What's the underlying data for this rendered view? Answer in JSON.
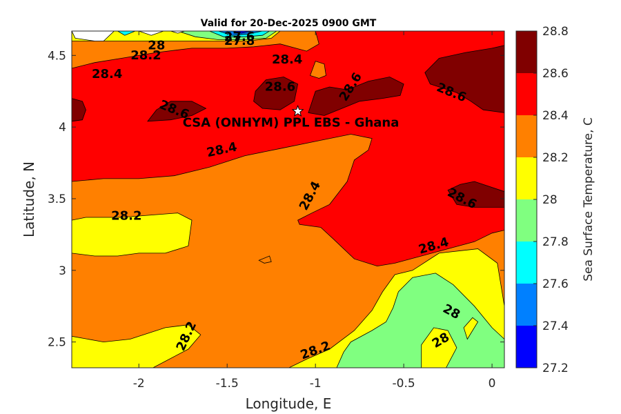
{
  "chart_data": {
    "type": "heatmap",
    "subtype": "filled-contour map",
    "title": "Valid for 20-Dec-2025 0900 GMT",
    "xlabel": "Longitude, E",
    "ylabel": "Latitude, N",
    "xlim": [
      -2.38,
      0.07
    ],
    "ylim": [
      2.32,
      4.67
    ],
    "x_ticks": [
      -2,
      -1.5,
      -1,
      -0.5,
      0
    ],
    "x_tick_labels": [
      "-2",
      "-1.5",
      "-1",
      "-0.5",
      "0"
    ],
    "y_ticks": [
      2.5,
      3,
      3.5,
      4,
      4.5
    ],
    "y_tick_labels": [
      "2.5",
      "3",
      "3.5",
      "4",
      "4.5"
    ],
    "colorbar": {
      "label": "Sea Surface Temperature, C",
      "ticks": [
        27.2,
        27.4,
        27.6,
        27.8,
        28,
        28.2,
        28.4,
        28.6,
        28.8
      ],
      "tick_labels": [
        "27.2",
        "27.4",
        "27.6",
        "27.8",
        "28",
        "28.2",
        "28.4",
        "28.6",
        "28.8"
      ],
      "levels": [
        {
          "min": 27.2,
          "max": 27.4,
          "color": "#0000ff"
        },
        {
          "min": 27.4,
          "max": 27.6,
          "color": "#0080ff"
        },
        {
          "min": 27.6,
          "max": 27.8,
          "color": "#00ffff"
        },
        {
          "min": 27.8,
          "max": 28.0,
          "color": "#80ff80"
        },
        {
          "min": 28.0,
          "max": 28.2,
          "color": "#ffff00"
        },
        {
          "min": 28.2,
          "max": 28.4,
          "color": "#ff8000"
        },
        {
          "min": 28.4,
          "max": 28.6,
          "color": "#ff0000"
        },
        {
          "min": 28.6,
          "max": 28.8,
          "color": "#800000"
        }
      ]
    },
    "site": {
      "label": "CSA (ONHYM) PPL EBS  - Ghana",
      "lon": -1.1,
      "lat": 4.11,
      "marker": "white star"
    },
    "regions": [
      {
        "level": 28.2,
        "color": "#ff8000",
        "polygon": [
          [
            -2.38,
            2.32
          ],
          [
            0.07,
            2.32
          ],
          [
            0.07,
            4.67
          ],
          [
            -2.38,
            4.67
          ]
        ]
      },
      {
        "level": 28.0,
        "color": "#ffff00",
        "polygon": [
          [
            -2.38,
            3.35
          ],
          [
            -2.3,
            3.37
          ],
          [
            -2.1,
            3.37
          ],
          [
            -1.78,
            3.4
          ],
          [
            -1.7,
            3.35
          ],
          [
            -1.72,
            3.17
          ],
          [
            -1.85,
            3.12
          ],
          [
            -2.0,
            3.12
          ],
          [
            -2.12,
            3.1
          ],
          [
            -2.25,
            3.1
          ],
          [
            -2.38,
            3.12
          ]
        ]
      },
      {
        "level": 28.0,
        "color": "#ffff00",
        "polygon": [
          [
            -2.38,
            2.32
          ],
          [
            -1.92,
            2.32
          ],
          [
            -1.72,
            2.45
          ],
          [
            -1.65,
            2.55
          ],
          [
            -1.72,
            2.62
          ],
          [
            -1.85,
            2.6
          ],
          [
            -2.05,
            2.52
          ],
          [
            -2.2,
            2.5
          ],
          [
            -2.38,
            2.54
          ]
        ]
      },
      {
        "level": 28.0,
        "color": "#ffff00",
        "polygon": [
          [
            -1.15,
            2.32
          ],
          [
            0.07,
            2.32
          ],
          [
            0.07,
            2.75
          ],
          [
            0.03,
            3.05
          ],
          [
            -0.08,
            3.15
          ],
          [
            -0.3,
            3.12
          ],
          [
            -0.45,
            3.0
          ],
          [
            -0.55,
            2.97
          ],
          [
            -0.62,
            2.85
          ],
          [
            -0.68,
            2.72
          ],
          [
            -0.78,
            2.58
          ],
          [
            -0.92,
            2.45
          ],
          [
            -1.05,
            2.38
          ]
        ]
      },
      {
        "level": 27.8,
        "color": "#80ff80",
        "polygon": [
          [
            -0.88,
            2.32
          ],
          [
            0.07,
            2.32
          ],
          [
            0.07,
            2.52
          ],
          [
            0.0,
            2.6
          ],
          [
            -0.1,
            2.75
          ],
          [
            -0.22,
            2.9
          ],
          [
            -0.32,
            2.98
          ],
          [
            -0.45,
            2.95
          ],
          [
            -0.53,
            2.85
          ],
          [
            -0.56,
            2.74
          ],
          [
            -0.6,
            2.64
          ],
          [
            -0.68,
            2.58
          ],
          [
            -0.8,
            2.5
          ],
          [
            -0.84,
            2.43
          ]
        ]
      },
      {
        "level": 28.0,
        "color": "#ffff00",
        "polygon": [
          [
            -0.4,
            2.32
          ],
          [
            -0.26,
            2.32
          ],
          [
            -0.2,
            2.46
          ],
          [
            -0.25,
            2.58
          ],
          [
            -0.33,
            2.6
          ],
          [
            -0.4,
            2.48
          ]
        ]
      },
      {
        "level": 28.0,
        "color": "#ffff00",
        "polygon": [
          [
            -0.14,
            2.52
          ],
          [
            -0.08,
            2.64
          ],
          [
            -0.11,
            2.67
          ],
          [
            -0.16,
            2.6
          ]
        ]
      },
      {
        "level": 28.4,
        "color": "#ff0000",
        "polygon": [
          [
            -2.38,
            3.62
          ],
          [
            -2.2,
            3.64
          ],
          [
            -2.0,
            3.64
          ],
          [
            -1.8,
            3.66
          ],
          [
            -1.6,
            3.72
          ],
          [
            -1.4,
            3.8
          ],
          [
            -1.2,
            3.85
          ],
          [
            -1.0,
            3.9
          ],
          [
            -0.8,
            3.95
          ],
          [
            -0.68,
            3.92
          ],
          [
            -0.7,
            3.84
          ],
          [
            -0.78,
            3.77
          ],
          [
            -0.82,
            3.62
          ],
          [
            -0.92,
            3.46
          ],
          [
            -1.02,
            3.4
          ],
          [
            -1.1,
            3.35
          ],
          [
            -1.09,
            3.32
          ],
          [
            -0.97,
            3.3
          ],
          [
            -0.9,
            3.22
          ],
          [
            -0.78,
            3.08
          ],
          [
            -0.65,
            3.03
          ],
          [
            -0.55,
            3.05
          ],
          [
            -0.4,
            3.1
          ],
          [
            -0.25,
            3.15
          ],
          [
            -0.1,
            3.2
          ],
          [
            0.0,
            3.26
          ],
          [
            0.07,
            3.28
          ],
          [
            0.07,
            4.67
          ],
          [
            -2.38,
            4.67
          ]
        ]
      },
      {
        "level": 28.2,
        "color": "#ff8000",
        "polygon": [
          [
            -2.38,
            4.41
          ],
          [
            -2.25,
            4.45
          ],
          [
            -2.1,
            4.48
          ],
          [
            -1.9,
            4.52
          ],
          [
            -1.7,
            4.55
          ],
          [
            -1.5,
            4.55
          ],
          [
            -1.35,
            4.56
          ],
          [
            -1.2,
            4.58
          ],
          [
            -1.05,
            4.53
          ],
          [
            -0.98,
            4.58
          ],
          [
            -1.0,
            4.67
          ],
          [
            -2.38,
            4.67
          ]
        ]
      },
      {
        "level": 28.0,
        "color": "#ffff00",
        "polygon": [
          [
            -2.38,
            4.67
          ],
          [
            -2.38,
            4.6
          ],
          [
            -2.2,
            4.6
          ],
          [
            -2.0,
            4.6
          ],
          [
            -1.8,
            4.6
          ],
          [
            -1.55,
            4.6
          ],
          [
            -1.38,
            4.6
          ],
          [
            -1.25,
            4.62
          ],
          [
            -1.2,
            4.67
          ]
        ]
      },
      {
        "level": 27.8,
        "color": "#80ff80",
        "polygon": [
          [
            -1.78,
            4.67
          ],
          [
            -1.68,
            4.63
          ],
          [
            -1.55,
            4.61
          ],
          [
            -1.4,
            4.61
          ],
          [
            -1.28,
            4.62
          ],
          [
            -1.22,
            4.67
          ]
        ]
      },
      {
        "level": 27.6,
        "color": "#00ffff",
        "polygon": [
          [
            -1.6,
            4.67
          ],
          [
            -1.52,
            4.63
          ],
          [
            -1.4,
            4.63
          ],
          [
            -1.3,
            4.64
          ],
          [
            -1.26,
            4.67
          ]
        ]
      },
      {
        "level": 27.4,
        "color": "#0080ff",
        "polygon": [
          [
            -1.55,
            4.67
          ],
          [
            -1.47,
            4.64
          ],
          [
            -1.38,
            4.65
          ],
          [
            -1.3,
            4.67
          ]
        ]
      },
      {
        "level": 27.2,
        "color": "#0000ff",
        "polygon": [
          [
            -1.47,
            4.67
          ],
          [
            -1.42,
            4.655
          ],
          [
            -1.36,
            4.67
          ]
        ]
      },
      {
        "level": 27.6,
        "color": "#00ffff",
        "polygon": [
          [
            -2.12,
            4.67
          ],
          [
            -2.08,
            4.64
          ],
          [
            -2.02,
            4.67
          ]
        ]
      },
      {
        "level": null,
        "color": "#ffffff",
        "polygon": [
          [
            -2.38,
            4.67
          ],
          [
            -2.36,
            4.62
          ],
          [
            -2.25,
            4.6
          ],
          [
            -2.2,
            4.6
          ],
          [
            -2.14,
            4.67
          ]
        ]
      },
      {
        "level": null,
        "color": "#ffffff",
        "polygon": [
          [
            -2.0,
            4.67
          ],
          [
            -1.93,
            4.64
          ],
          [
            -1.86,
            4.67
          ]
        ]
      },
      {
        "level": null,
        "color": "#ffffff",
        "polygon": [
          [
            -1.82,
            4.67
          ],
          [
            -1.78,
            4.655
          ],
          [
            -1.74,
            4.67
          ]
        ]
      },
      {
        "level": 28.2,
        "color": "#ff8000",
        "polygon": [
          [
            -1.03,
            4.36
          ],
          [
            -1.0,
            4.46
          ],
          [
            -0.95,
            4.44
          ],
          [
            -0.94,
            4.36
          ],
          [
            -0.98,
            4.34
          ]
        ]
      },
      {
        "level": 28.2,
        "color": "#ff8000",
        "polygon": [
          [
            -1.32,
            3.07
          ],
          [
            -1.26,
            3.1
          ],
          [
            -1.25,
            3.06
          ],
          [
            -1.29,
            3.05
          ]
        ]
      },
      {
        "level": 28.6,
        "color": "#800000",
        "polygon": [
          [
            -2.38,
            4.2
          ],
          [
            -2.32,
            4.18
          ],
          [
            -2.3,
            4.12
          ],
          [
            -2.32,
            4.05
          ],
          [
            -2.38,
            4.04
          ]
        ]
      },
      {
        "level": 28.6,
        "color": "#800000",
        "polygon": [
          [
            -1.95,
            4.04
          ],
          [
            -1.9,
            4.12
          ],
          [
            -1.82,
            4.18
          ],
          [
            -1.7,
            4.18
          ],
          [
            -1.62,
            4.13
          ],
          [
            -1.7,
            4.08
          ],
          [
            -1.82,
            4.05
          ]
        ]
      },
      {
        "level": 28.6,
        "color": "#800000",
        "polygon": [
          [
            -1.34,
            4.25
          ],
          [
            -1.28,
            4.33
          ],
          [
            -1.18,
            4.35
          ],
          [
            -1.1,
            4.3
          ],
          [
            -1.12,
            4.18
          ],
          [
            -1.2,
            4.12
          ],
          [
            -1.3,
            4.13
          ],
          [
            -1.35,
            4.18
          ]
        ]
      },
      {
        "level": 28.6,
        "color": "#800000",
        "polygon": [
          [
            -1.04,
            4.1
          ],
          [
            -1.0,
            4.25
          ],
          [
            -0.92,
            4.28
          ],
          [
            -0.82,
            4.26
          ],
          [
            -0.7,
            4.32
          ],
          [
            -0.58,
            4.35
          ],
          [
            -0.5,
            4.3
          ],
          [
            -0.52,
            4.22
          ],
          [
            -0.62,
            4.2
          ],
          [
            -0.75,
            4.18
          ],
          [
            -0.85,
            4.13
          ],
          [
            -0.95,
            4.08
          ]
        ]
      },
      {
        "level": 28.6,
        "color": "#800000",
        "polygon": [
          [
            -0.35,
            4.3
          ],
          [
            -0.38,
            4.38
          ],
          [
            -0.3,
            4.48
          ],
          [
            -0.15,
            4.52
          ],
          [
            0.0,
            4.55
          ],
          [
            0.07,
            4.57
          ],
          [
            0.07,
            4.1
          ],
          [
            -0.05,
            4.12
          ],
          [
            -0.12,
            4.18
          ],
          [
            -0.2,
            4.24
          ]
        ]
      },
      {
        "level": 28.6,
        "color": "#800000",
        "polygon": [
          [
            0.07,
            3.55
          ],
          [
            -0.1,
            3.62
          ],
          [
            -0.18,
            3.6
          ],
          [
            -0.25,
            3.56
          ],
          [
            -0.2,
            3.46
          ],
          [
            -0.1,
            3.44
          ],
          [
            0.07,
            3.44
          ]
        ]
      }
    ],
    "contour_labels": [
      {
        "text": "27.6",
        "lon": -1.43,
        "lat": 4.63,
        "angle": 0
      },
      {
        "text": "27.8",
        "lon": -1.43,
        "lat": 4.6,
        "angle": 0
      },
      {
        "text": "28",
        "lon": -1.9,
        "lat": 4.57,
        "angle": 0
      },
      {
        "text": "28.2",
        "lon": -1.96,
        "lat": 4.5,
        "angle": 0
      },
      {
        "text": "28.4",
        "lon": -1.16,
        "lat": 4.47,
        "angle": 0
      },
      {
        "text": "28.4",
        "lon": -2.18,
        "lat": 4.37,
        "angle": 0
      },
      {
        "text": "28.6",
        "lon": -1.2,
        "lat": 4.28,
        "angle": 0
      },
      {
        "text": "28.6",
        "lon": -0.8,
        "lat": 4.28,
        "angle": -58
      },
      {
        "text": "28.6",
        "lon": -0.23,
        "lat": 4.24,
        "angle": 22
      },
      {
        "text": "28.6",
        "lon": -1.8,
        "lat": 4.12,
        "angle": 22
      },
      {
        "text": "28.4",
        "lon": -1.53,
        "lat": 3.84,
        "angle": -12
      },
      {
        "text": "28.6",
        "lon": -0.17,
        "lat": 3.5,
        "angle": 27
      },
      {
        "text": "28.4",
        "lon": -1.03,
        "lat": 3.52,
        "angle": -62
      },
      {
        "text": "28.2",
        "lon": -2.07,
        "lat": 3.38,
        "angle": 0
      },
      {
        "text": "28.4",
        "lon": -0.33,
        "lat": 3.17,
        "angle": -16
      },
      {
        "text": "28",
        "lon": -0.23,
        "lat": 2.71,
        "angle": 28
      },
      {
        "text": "28",
        "lon": -0.29,
        "lat": 2.51,
        "angle": -30
      },
      {
        "text": "28.2",
        "lon": -1.73,
        "lat": 2.54,
        "angle": -65
      },
      {
        "text": "28.2",
        "lon": -1.0,
        "lat": 2.44,
        "angle": -20
      }
    ]
  }
}
